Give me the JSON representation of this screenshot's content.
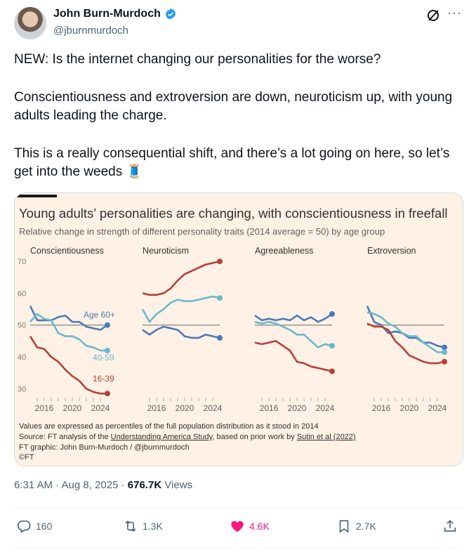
{
  "author": {
    "name": "John Burn-Murdoch",
    "handle": "@jburnmurdoch"
  },
  "tweet": {
    "paragraphs": [
      "NEW: Is the internet changing our personalities for the worse?",
      "Conscientiousness and extroversion are down, neuroticism up, with young adults leading the charge.",
      "This is a really consequential shift, and there’s a lot going on here, so let’s get into the weeds 🧵"
    ],
    "timestamp": "6:31 AM · Aug 8, 2025 · ",
    "views_count": "676.7K",
    "views_label": " Views"
  },
  "actions": {
    "replies": "160",
    "reposts": "1.3K",
    "likes": "4.6K",
    "bookmarks": "2.7K"
  },
  "colors": {
    "accent_like": "#f91880",
    "verified": "#1d9bf0",
    "chart_bg": "#fff1e5",
    "age60": "#4a7ab8",
    "age40": "#6ab8cf",
    "age16": "#b5403a"
  },
  "chart_data": {
    "type": "line",
    "title": "Young adults’ personalities are changing, with conscientiousness in freefall",
    "subtitle": "Relative change in strength of different personality traits (2014 average = 50) by age group",
    "ylim": [
      27,
      72
    ],
    "yticks": [
      30,
      40,
      50,
      60,
      70
    ],
    "xlim": [
      2014,
      2025
    ],
    "xticks": [
      2016,
      2020,
      2024
    ],
    "series_labels": [
      "Age 60+",
      "40-59",
      "16-39"
    ],
    "panels": [
      {
        "title": "Conscientiousness",
        "series": [
          {
            "name": "Age 60+",
            "x": [
              2014,
              2015,
              2016,
              2017,
              2018,
              2019,
              2020,
              2021,
              2022,
              2023,
              2024,
              2025
            ],
            "y": [
              56,
              51.5,
              51.5,
              51.5,
              52.5,
              53,
              51,
              51,
              49.5,
              49,
              48.5,
              50
            ]
          },
          {
            "name": "40-59",
            "x": [
              2014,
              2015,
              2016,
              2017,
              2018,
              2019,
              2020,
              2021,
              2022,
              2023,
              2024,
              2025
            ],
            "y": [
              51,
              53.5,
              52,
              51.5,
              47.5,
              46.5,
              46.5,
              45.5,
              43.5,
              43,
              42,
              42
            ]
          },
          {
            "name": "16-39",
            "x": [
              2014,
              2015,
              2016,
              2017,
              2018,
              2019,
              2020,
              2021,
              2022,
              2023,
              2024,
              2025
            ],
            "y": [
              46.5,
              43,
              42.5,
              40,
              38.5,
              36,
              34,
              32.5,
              30,
              29,
              28.5,
              28.5
            ]
          }
        ]
      },
      {
        "title": "Neuroticism",
        "series": [
          {
            "name": "Age 60+",
            "x": [
              2014,
              2015,
              2016,
              2017,
              2018,
              2019,
              2020,
              2021,
              2022,
              2023,
              2024,
              2025
            ],
            "y": [
              48.5,
              47,
              48.5,
              49.5,
              49,
              48.5,
              46.5,
              46,
              46,
              47,
              46.5,
              46
            ]
          },
          {
            "name": "40-59",
            "x": [
              2014,
              2015,
              2016,
              2017,
              2018,
              2019,
              2020,
              2021,
              2022,
              2023,
              2024,
              2025
            ],
            "y": [
              55,
              51,
              53.5,
              55,
              57,
              58,
              57.5,
              57.5,
              58,
              58.5,
              59,
              58.5
            ]
          },
          {
            "name": "16-39",
            "x": [
              2014,
              2015,
              2016,
              2017,
              2018,
              2019,
              2020,
              2021,
              2022,
              2023,
              2024,
              2025
            ],
            "y": [
              60,
              59.5,
              59.5,
              60,
              61.5,
              64,
              66,
              67,
              68,
              69,
              69.5,
              70
            ]
          }
        ]
      },
      {
        "title": "Agreeableness",
        "series": [
          {
            "name": "Age 60+",
            "x": [
              2014,
              2015,
              2016,
              2017,
              2018,
              2019,
              2020,
              2021,
              2022,
              2023,
              2024,
              2025
            ],
            "y": [
              53,
              51.5,
              52,
              51.5,
              52,
              51.5,
              53,
              51.5,
              52.5,
              51,
              52,
              53.5
            ]
          },
          {
            "name": "40-59",
            "x": [
              2014,
              2015,
              2016,
              2017,
              2018,
              2019,
              2020,
              2021,
              2022,
              2023,
              2024,
              2025
            ],
            "y": [
              51,
              50.5,
              51,
              50.5,
              49.5,
              48.5,
              47,
              47,
              45,
              43,
              44,
              43.5
            ]
          },
          {
            "name": "16-39",
            "x": [
              2014,
              2015,
              2016,
              2017,
              2018,
              2019,
              2020,
              2021,
              2022,
              2023,
              2024,
              2025
            ],
            "y": [
              44.5,
              44,
              44.5,
              45,
              43.5,
              42,
              38.5,
              38,
              37,
              36.5,
              36,
              35.5
            ]
          }
        ]
      },
      {
        "title": "Extroversion",
        "series": [
          {
            "name": "Age 60+",
            "x": [
              2014,
              2015,
              2016,
              2017,
              2018,
              2019,
              2020,
              2021,
              2022,
              2023,
              2024,
              2025
            ],
            "y": [
              56,
              51,
              50,
              47.5,
              48,
              47.5,
              46,
              46,
              44.5,
              44.5,
              43.5,
              43
            ]
          },
          {
            "name": "40-59",
            "x": [
              2014,
              2015,
              2016,
              2017,
              2018,
              2019,
              2020,
              2021,
              2022,
              2023,
              2024,
              2025
            ],
            "y": [
              54,
              53.5,
              52.5,
              50.5,
              49.5,
              47.5,
              46.5,
              46.5,
              44.5,
              43,
              41.5,
              41.5
            ]
          },
          {
            "name": "16-39",
            "x": [
              2014,
              2015,
              2016,
              2017,
              2018,
              2019,
              2020,
              2021,
              2022,
              2023,
              2024,
              2025
            ],
            "y": [
              50.5,
              49.5,
              49.5,
              48.5,
              45,
              43,
              40.5,
              39.5,
              38.5,
              38,
              38,
              38.5
            ]
          }
        ]
      }
    ],
    "footnotes": {
      "line1": "Values are expressed as percentiles of the full population distribution as it stood in 2014",
      "line2_pre": "Source: FT analysis of the ",
      "line2_link1": "Understanding America Study",
      "line2_mid": ", based on prior work by ",
      "line2_link2": "Sutin et al (2022)",
      "line3": "FT graphic: John Burn-Murdoch / @jburnmurdoch",
      "line4": "©FT"
    }
  }
}
